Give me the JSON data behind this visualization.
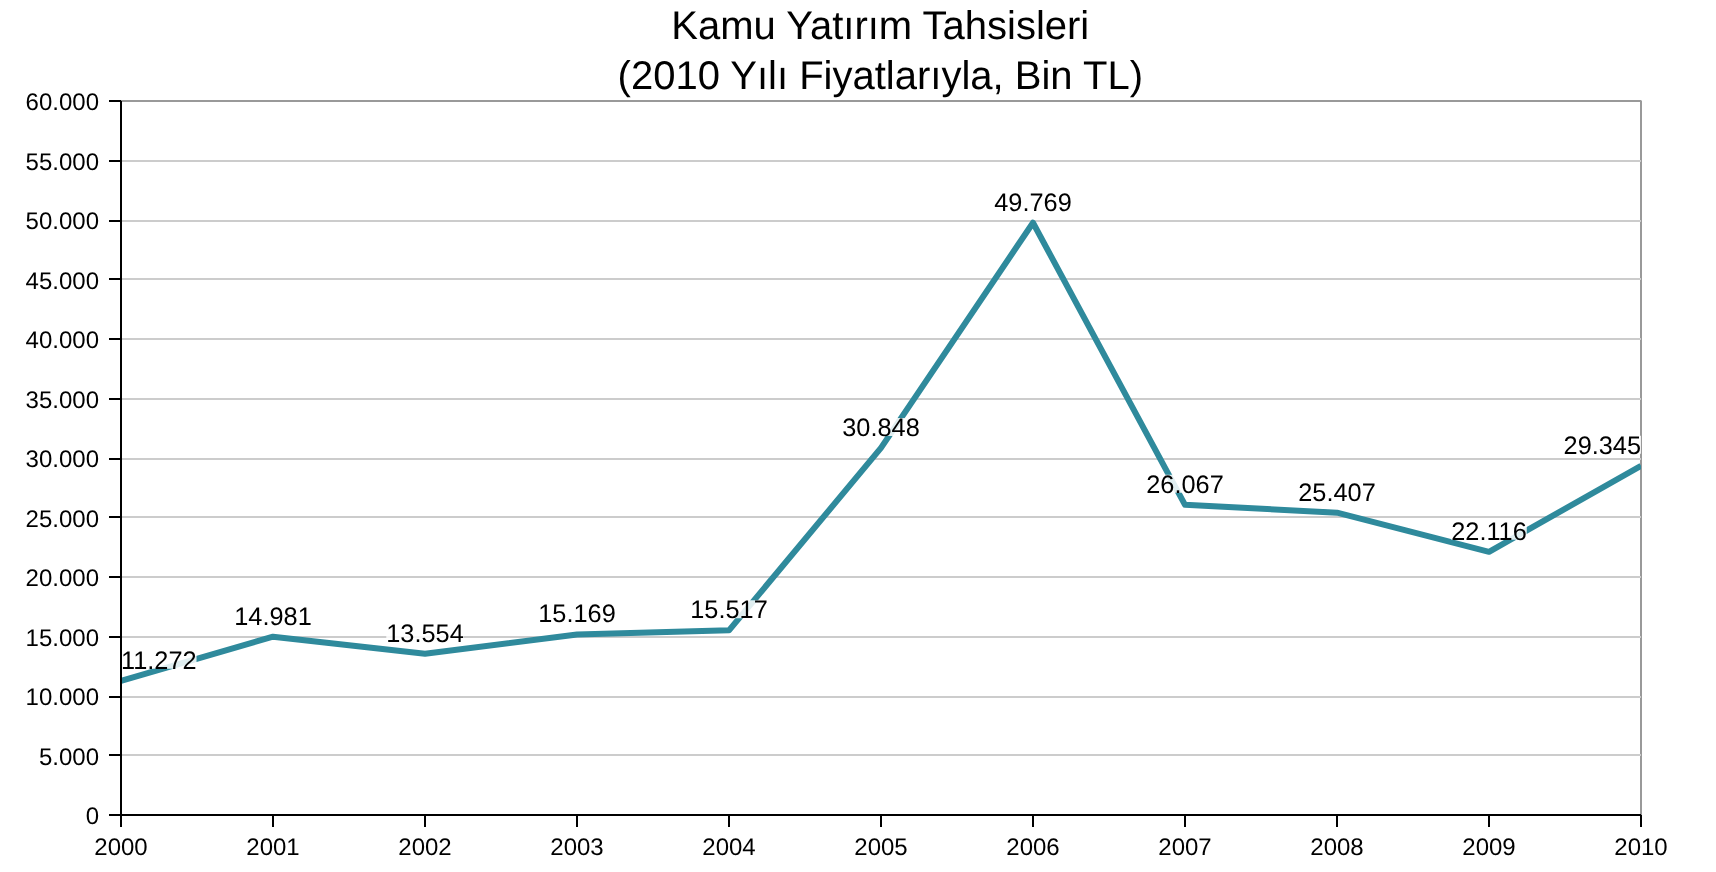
{
  "chart_data": {
    "type": "line",
    "title": "Kamu Yatırım Tahsisleri",
    "subtitle": "(2010 Yılı Fiyatlarıyla, Bin TL)",
    "x": [
      2000,
      2001,
      2002,
      2003,
      2004,
      2005,
      2006,
      2007,
      2008,
      2009,
      2010
    ],
    "series": [
      {
        "color": "#2f8a9c",
        "values": [
          11272,
          14981,
          13554,
          15169,
          15517,
          30848,
          49769,
          26067,
          25407,
          22116,
          29345
        ],
        "value_labels": [
          "11.272",
          "14.981",
          "13.554",
          "15.169",
          "15.517",
          "30.848",
          "49.769",
          "26.067",
          "25.407",
          "22.116",
          "29.345"
        ]
      }
    ],
    "xlim": [
      2000,
      2010
    ],
    "xticks": [
      2000,
      2001,
      2002,
      2003,
      2004,
      2005,
      2006,
      2007,
      2008,
      2009,
      2010
    ],
    "ylim": [
      0,
      60000
    ],
    "yticks": [
      {
        "value": 0,
        "label": "0"
      },
      {
        "value": 5000,
        "label": "5.000"
      },
      {
        "value": 10000,
        "label": "10.000"
      },
      {
        "value": 15000,
        "label": "15.000"
      },
      {
        "value": 20000,
        "label": "20.000"
      },
      {
        "value": 25000,
        "label": "25.000"
      },
      {
        "value": 30000,
        "label": "30.000"
      },
      {
        "value": 35000,
        "label": "35.000"
      },
      {
        "value": 40000,
        "label": "40.000"
      },
      {
        "value": 45000,
        "label": "45.000"
      },
      {
        "value": 50000,
        "label": "50.000"
      },
      {
        "value": 55000,
        "label": "55.000"
      },
      {
        "value": 60000,
        "label": "60.000"
      }
    ],
    "grid": "y",
    "marker": "none",
    "line_style": "solid"
  }
}
